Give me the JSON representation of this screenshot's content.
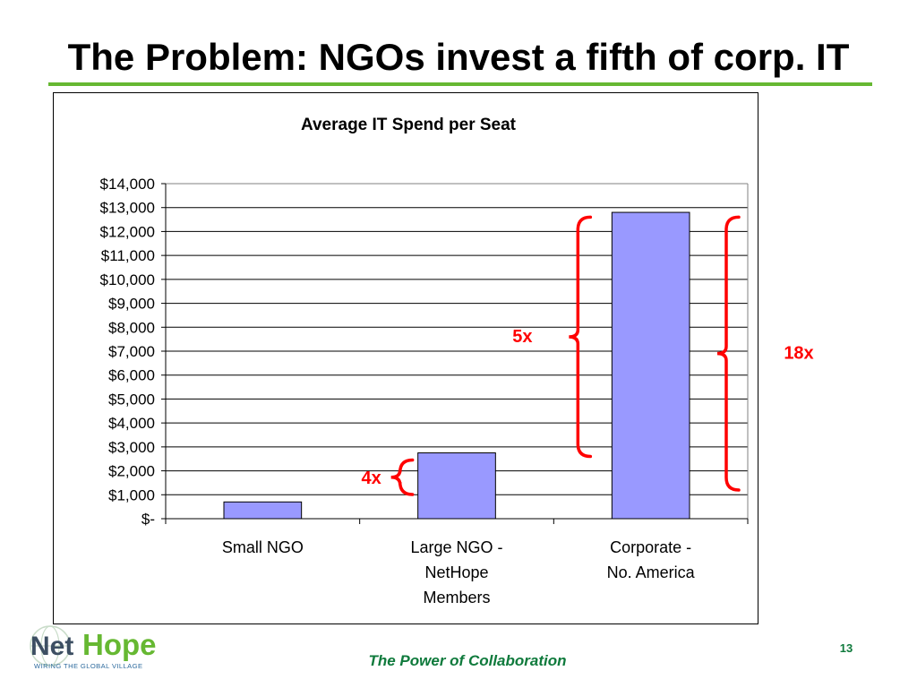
{
  "slide": {
    "title": "The Problem: NGOs invest a fifth of corp. IT",
    "footer": "The Power of Collaboration",
    "page_number": "13",
    "accent_color": "#66b832"
  },
  "logo": {
    "name": "NetHope",
    "part1": "Net",
    "part2": "Hope",
    "tagline": "WIRING THE GLOBAL VILLAGE"
  },
  "chart_data": {
    "type": "bar",
    "title": "Average IT Spend per Seat",
    "categories": [
      [
        "Small NGO"
      ],
      [
        "Large NGO -",
        "NetHope",
        "Members"
      ],
      [
        "Corporate -",
        "No. America"
      ]
    ],
    "values": [
      700,
      2750,
      12800
    ],
    "ylim": [
      0,
      14000
    ],
    "ytick_labels": [
      "$-",
      "$1,000",
      "$2,000",
      "$3,000",
      "$4,000",
      "$5,000",
      "$6,000",
      "$7,000",
      "$8,000",
      "$9,000",
      "$10,000",
      "$11,000",
      "$12,000",
      "$13,000",
      "$14,000"
    ],
    "grid": true,
    "bar_color": "#9999ff",
    "annotations": [
      {
        "label": "4x",
        "spans": "Small NGO to Large NGO",
        "color": "#ff0000"
      },
      {
        "label": "5x",
        "spans": "Large NGO to Corporate",
        "color": "#ff0000"
      },
      {
        "label": "18x",
        "spans": "Small NGO to Corporate",
        "color": "#ff0000"
      }
    ]
  }
}
